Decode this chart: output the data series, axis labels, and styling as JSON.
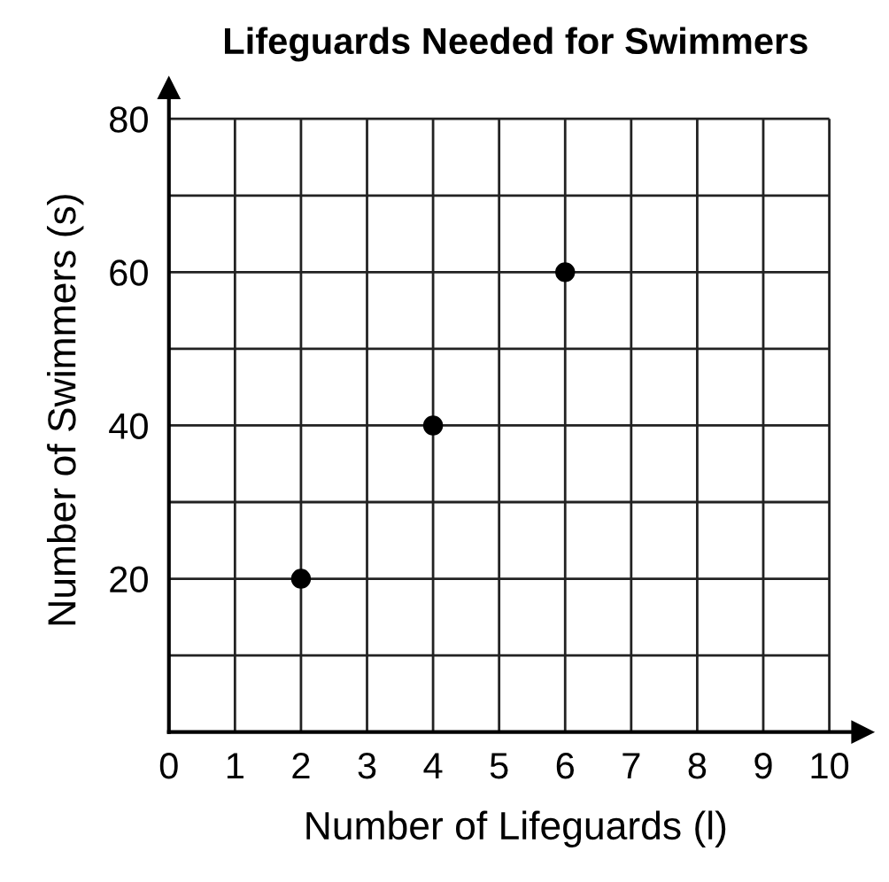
{
  "chart_data": {
    "type": "scatter",
    "title": "Lifeguards Needed for Swimmers",
    "xlabel": "Number of Lifeguards (l)",
    "ylabel": "Number of Swimmers (s)",
    "x": [
      2,
      4,
      6
    ],
    "series": [
      {
        "color": "#000000",
        "values": [
          20,
          40,
          60
        ]
      }
    ],
    "marker": "circle",
    "xlim": [
      0,
      10.5
    ],
    "ylim": [
      0,
      84
    ],
    "xticks": [
      0,
      1,
      2,
      3,
      4,
      5,
      6,
      7,
      8,
      9,
      10
    ],
    "yticks": [
      {
        "value": 10,
        "label": null
      },
      20,
      {
        "value": 30,
        "label": null
      },
      40,
      {
        "value": 50,
        "label": null
      },
      60,
      {
        "value": 70,
        "label": null
      },
      80
    ],
    "grid": true,
    "legend": false
  }
}
